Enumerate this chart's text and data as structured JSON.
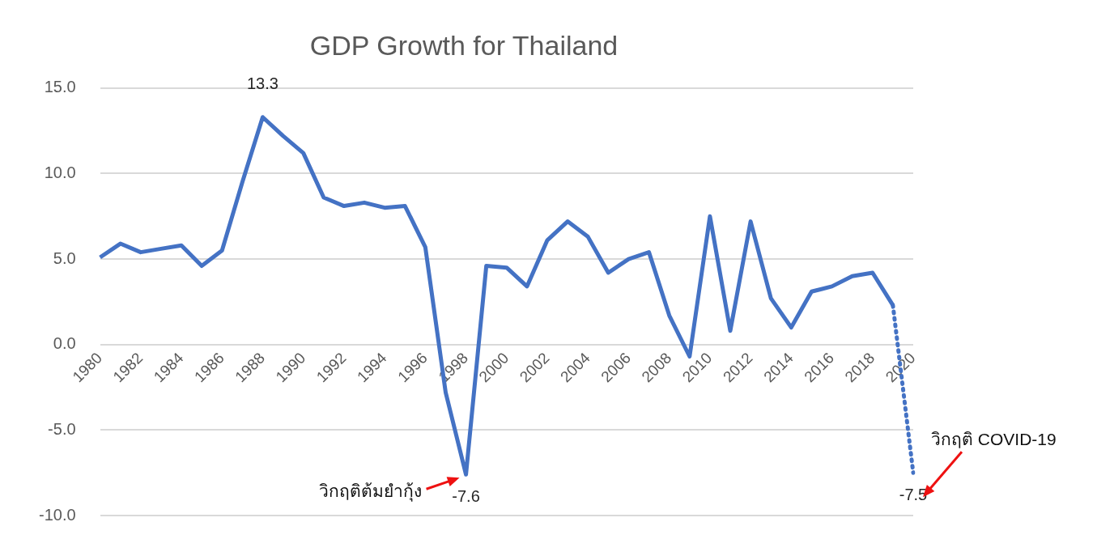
{
  "chart_data": {
    "type": "line",
    "title": "GDP Growth for Thailand",
    "categories": [
      "1980",
      null,
      "1982",
      null,
      "1984",
      null,
      "1986",
      null,
      "1988",
      null,
      "1990",
      null,
      "1992",
      null,
      "1994",
      null,
      "1996",
      null,
      "1998",
      null,
      "2000",
      null,
      "2002",
      null,
      "2004",
      null,
      "2006",
      null,
      "2008",
      null,
      "2010",
      null,
      "2012",
      null,
      "2014",
      null,
      "2016",
      null,
      "2018",
      null,
      "2020"
    ],
    "series": [
      {
        "color": "#4472c4",
        "line_style": "solid",
        "values": [
          5.1,
          5.9,
          5.4,
          5.6,
          5.8,
          4.6,
          5.5,
          9.5,
          13.3,
          12.2,
          11.2,
          8.6,
          8.1,
          8.3,
          8.0,
          8.1,
          5.7,
          -2.8,
          -7.6,
          4.6,
          4.5,
          3.4,
          6.1,
          7.2,
          6.3,
          4.2,
          5.0,
          5.4,
          1.7,
          -0.7,
          7.5,
          0.8,
          7.2,
          2.7,
          1.0,
          3.1,
          3.4,
          4.0,
          4.2,
          2.3,
          null
        ],
        "value_labels": [
          null,
          null,
          null,
          null,
          null,
          null,
          null,
          null,
          "13.3",
          null,
          null,
          null,
          null,
          null,
          null,
          null,
          null,
          null,
          "-7.6",
          null,
          null,
          null,
          null,
          null,
          null,
          null,
          null,
          null,
          null,
          null,
          null,
          null,
          null,
          null,
          null,
          null,
          null,
          null,
          null,
          null,
          null
        ]
      },
      {
        "color": "#4472c4",
        "line_style": "dotted",
        "values": [
          null,
          null,
          null,
          null,
          null,
          null,
          null,
          null,
          null,
          null,
          null,
          null,
          null,
          null,
          null,
          null,
          null,
          null,
          null,
          null,
          null,
          null,
          null,
          null,
          null,
          null,
          null,
          null,
          null,
          null,
          null,
          null,
          null,
          null,
          null,
          null,
          null,
          null,
          null,
          2.3,
          -7.5
        ],
        "value_labels": [
          null,
          null,
          null,
          null,
          null,
          null,
          null,
          null,
          null,
          null,
          null,
          null,
          null,
          null,
          null,
          null,
          null,
          null,
          null,
          null,
          null,
          null,
          null,
          null,
          null,
          null,
          null,
          null,
          null,
          null,
          null,
          null,
          null,
          null,
          null,
          null,
          null,
          null,
          null,
          null,
          "-7.5"
        ]
      }
    ],
    "ylim": [
      -10,
      15
    ],
    "yticks": [
      {
        "value": -10,
        "label": "-10.0"
      },
      {
        "value": -5,
        "label": "-5.0"
      },
      {
        "value": 0,
        "label": "0.0"
      },
      {
        "value": 5,
        "label": "5.0"
      },
      {
        "value": 10,
        "label": "10.0"
      },
      {
        "value": 15,
        "label": "15.0"
      }
    ],
    "grid": "y",
    "legend": false,
    "marker": "none",
    "annotations": [
      {
        "text": "วิกฤติต้มยำกุ้ง",
        "x": "1998",
        "y": -7.6
      },
      {
        "text": "วิกฤติ COVID-19",
        "x": "2020",
        "y": -7.5
      }
    ]
  }
}
